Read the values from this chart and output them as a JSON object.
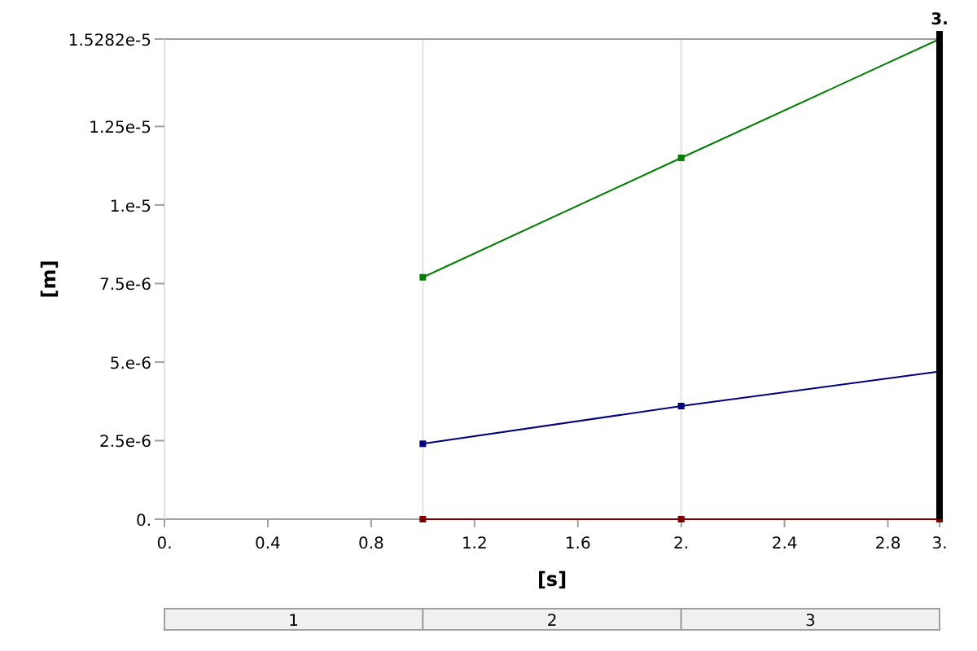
{
  "chart_data": {
    "type": "line",
    "xlabel": "[s]",
    "ylabel": "[m]",
    "xlim": [
      0,
      3
    ],
    "ylim": [
      0,
      1.5282e-05
    ],
    "xticks": [
      {
        "value": 0,
        "label": "0."
      },
      0.4,
      0.8,
      1.2,
      1.6,
      {
        "value": 2,
        "label": "2."
      },
      2.4,
      2.8,
      {
        "value": 3,
        "label": "3."
      }
    ],
    "yticks": [
      {
        "value": 0,
        "label": "0."
      },
      {
        "value": 2.5e-06,
        "label": "2.5e-6"
      },
      {
        "value": 5e-06,
        "label": "5.e-6"
      },
      {
        "value": 7.5e-06,
        "label": "7.5e-6"
      },
      {
        "value": 1e-05,
        "label": "1.e-5"
      },
      {
        "value": 1.25e-05,
        "label": "1.25e-5"
      },
      {
        "value": 1.5282e-05,
        "label": "1.5282e-5"
      }
    ],
    "x": [
      1,
      2,
      3
    ],
    "series": [
      {
        "color": "#007f00",
        "values": [
          7.7e-06,
          1.15e-05,
          1.5282e-05
        ]
      },
      {
        "color": "#00007f",
        "values": [
          2.4e-06,
          3.6e-06,
          4.7e-06
        ]
      },
      {
        "color": "#7f0000",
        "values": [
          0,
          0,
          0
        ]
      }
    ],
    "marker": "square",
    "line_style": "solid",
    "ref_lines": [
      {
        "axis": "x",
        "value": 3,
        "label": "3.",
        "color": "#000000"
      },
      {
        "axis": "x",
        "value": 1,
        "color": "#e0e0e0"
      },
      {
        "axis": "x",
        "value": 2,
        "color": "#e0e0e0"
      }
    ],
    "annotations": [
      "1",
      "2",
      "3"
    ]
  }
}
